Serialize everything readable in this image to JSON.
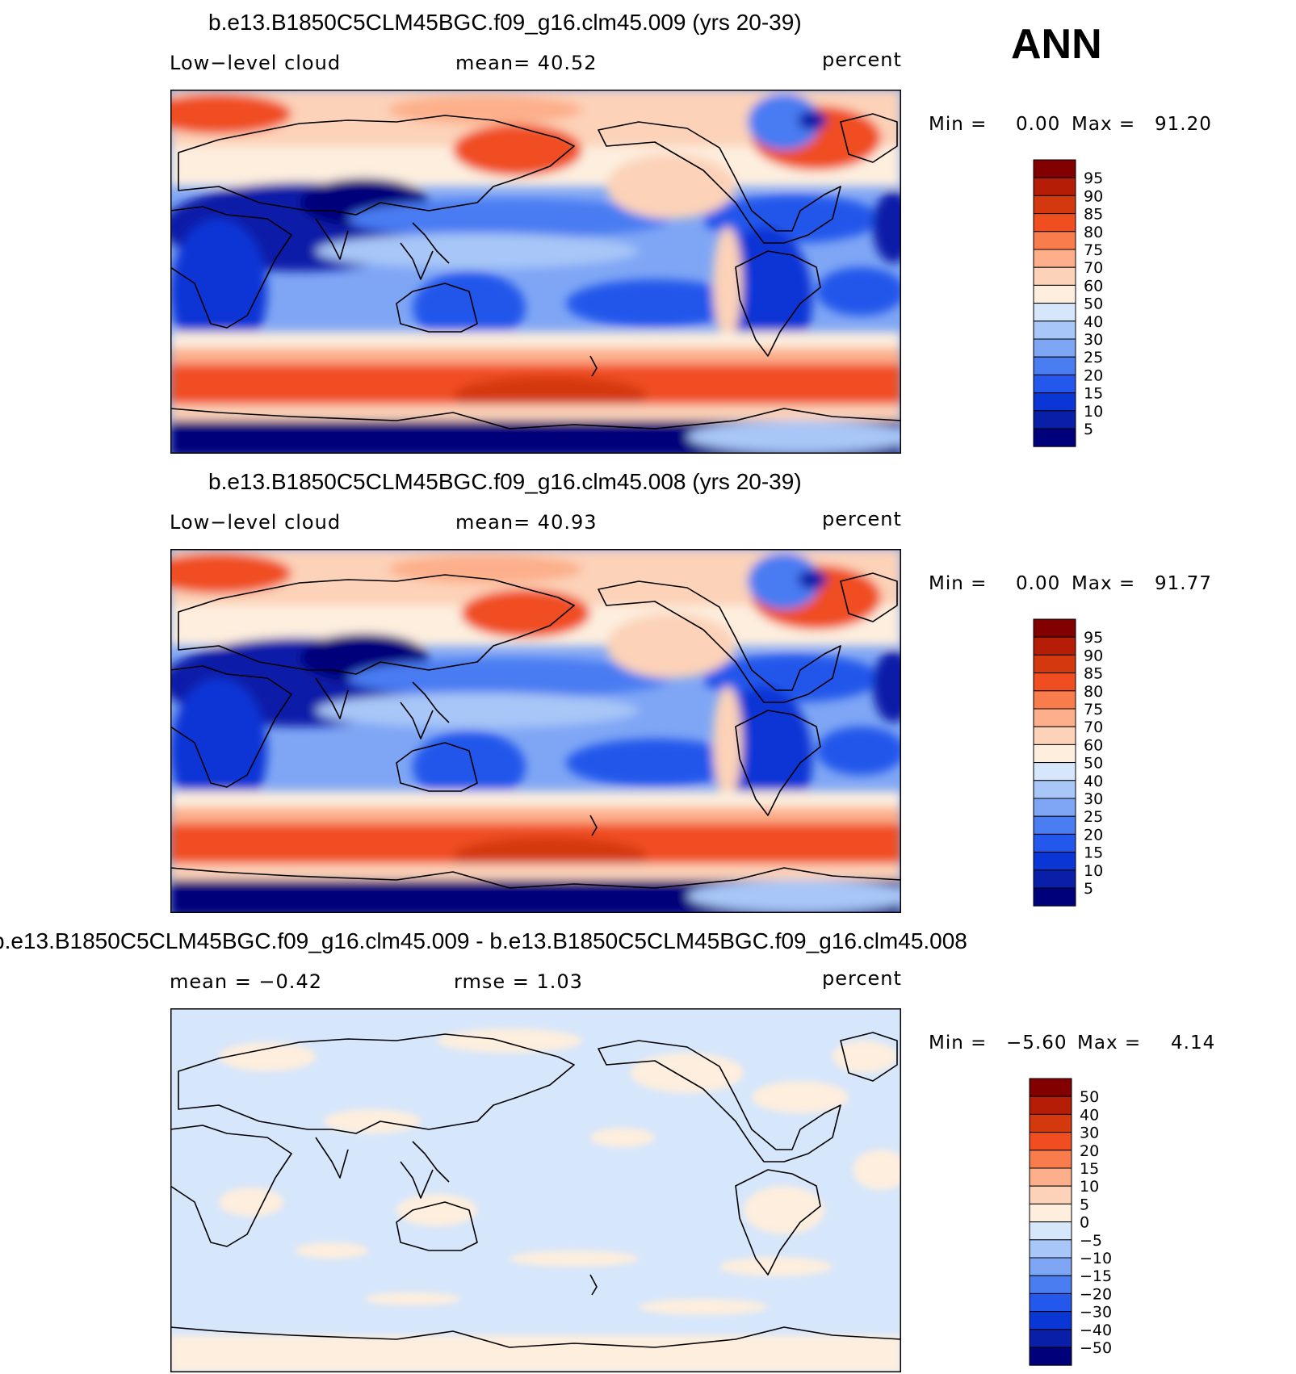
{
  "header": {
    "season": "ANN"
  },
  "palettes": {
    "field": [
      "#00007a",
      "#0a1fa8",
      "#0a36d6",
      "#2457eb",
      "#4a7cf2",
      "#7fa6f5",
      "#a8c6f7",
      "#d6e6fb",
      "#fdeede",
      "#fcd2b8",
      "#fcaf8a",
      "#f97c4c",
      "#f04e21",
      "#d4380e",
      "#b51d06",
      "#820000"
    ],
    "diff": [
      "#00007a",
      "#0a1fa8",
      "#0a36d6",
      "#2457eb",
      "#4a7cf2",
      "#7fa6f5",
      "#a8c6f7",
      "#d6e6fb",
      "#fdeede",
      "#fcd2b8",
      "#fcaf8a",
      "#f97c4c",
      "#f04e21",
      "#d4380e",
      "#b51d06",
      "#820000"
    ]
  },
  "panels": [
    {
      "title": "b.e13.B1850C5CLM45BGC.f09_g16.clm45.009 (yrs 20-39)",
      "left_label": "Low−level  cloud",
      "mid_label": "mean=   40.52",
      "units": "percent",
      "min_label": "Min  =",
      "min_value": "0.00",
      "max_label": "Max  =",
      "max_value": "91.20"
    },
    {
      "title": "b.e13.B1850C5CLM45BGC.f09_g16.clm45.008 (yrs 20-39)",
      "left_label": "Low−level  cloud",
      "mid_label": "mean=   40.93",
      "units": "percent",
      "min_label": "Min  =",
      "min_value": "0.00",
      "max_label": "Max  =",
      "max_value": "91.77"
    },
    {
      "title": "b.e13.B1850C5CLM45BGC.f09_g16.clm45.009 - b.e13.B1850C5CLM45BGC.f09_g16.clm45.008",
      "left_label": "mean  =    −0.42",
      "mid_label": "rmse  =     1.03",
      "units": "percent",
      "min_label": "Min  =",
      "min_value": "−5.60",
      "max_label": "Max  =",
      "max_value": "4.14"
    }
  ],
  "chart_data": [
    {
      "type": "heatmap",
      "title": "b.e13.B1850C5CLM45BGC.f09_g16.clm45.009 (yrs 20-39)",
      "variable": "Low−level  cloud",
      "units": "percent",
      "mean": 40.52,
      "min": 0.0,
      "max": 91.2,
      "colorbar_levels": [
        "95",
        "90",
        "85",
        "80",
        "75",
        "70",
        "60",
        "50",
        "40",
        "30",
        "25",
        "20",
        "15",
        "10",
        "5"
      ]
    },
    {
      "type": "heatmap",
      "title": "b.e13.B1850C5CLM45BGC.f09_g16.clm45.008 (yrs 20-39)",
      "variable": "Low−level  cloud",
      "units": "percent",
      "mean": 40.93,
      "min": 0.0,
      "max": 91.77,
      "colorbar_levels": [
        "95",
        "90",
        "85",
        "80",
        "75",
        "70",
        "60",
        "50",
        "40",
        "30",
        "25",
        "20",
        "15",
        "10",
        "5"
      ]
    },
    {
      "type": "heatmap",
      "title": "b.e13.B1850C5CLM45BGC.f09_g16.clm45.009 - b.e13.B1850C5CLM45BGC.f09_g16.clm45.008",
      "units": "percent",
      "mean": -0.42,
      "rmse": 1.03,
      "min": -5.6,
      "max": 4.14,
      "colorbar_levels": [
        "50",
        "40",
        "30",
        "20",
        "15",
        "10",
        "5",
        "0",
        "−5",
        "−10",
        "−15",
        "−20",
        "−30",
        "−40",
        "−50"
      ]
    }
  ]
}
